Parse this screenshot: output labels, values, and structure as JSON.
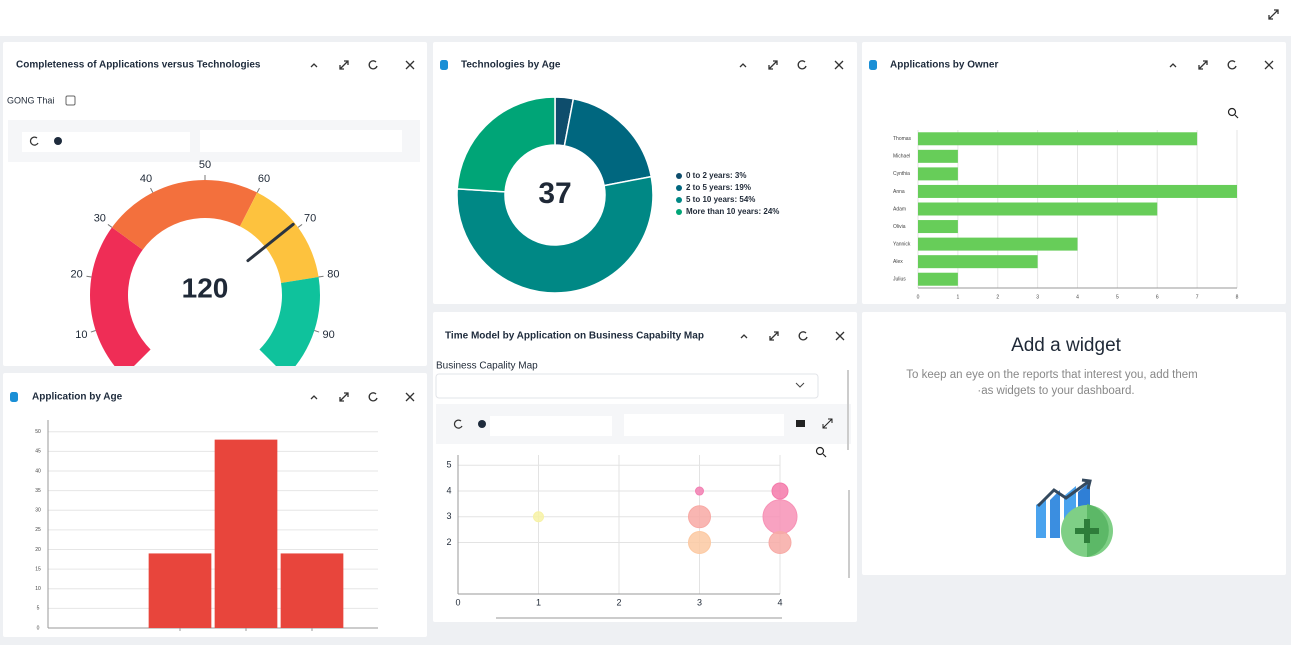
{
  "chart_data": [
    {
      "type": "gauge",
      "title": "Completeness of Applications versus Technologies",
      "filter": "GONG Thai",
      "value": 120,
      "pointer": 69,
      "ylim": [
        0,
        100
      ],
      "yticks": [
        10,
        20,
        30,
        40,
        50,
        60,
        70,
        80,
        90
      ],
      "bands": [
        {
          "from": 0,
          "to": 30,
          "color": "#ef2d56"
        },
        {
          "from": 30,
          "to": 60,
          "color": "#f3703d"
        },
        {
          "from": 60,
          "to": 80,
          "color": "#fdc23e"
        },
        {
          "from": 80,
          "to": 100,
          "color": "#0fc29c"
        }
      ]
    },
    {
      "type": "donut",
      "title": "Technologies by Age",
      "total": 37,
      "categories": [
        "0 to 2 years: 3%",
        "2 to 5 years: 19%",
        "5 to 10 years: 54%",
        "More than 10 years: 24%"
      ],
      "values": [
        3,
        19,
        54,
        24
      ],
      "colors": [
        "#0e4d6c",
        "#00677f",
        "#008885",
        "#00a577"
      ]
    },
    {
      "type": "hbar",
      "title": "Applications by Owner",
      "categories": [
        "Thomas",
        "Michael",
        "Cynthia",
        "Anna",
        "Adam",
        "Olivia",
        "Yannick",
        "Alex",
        "Julius"
      ],
      "values": [
        7,
        1,
        1,
        8,
        6,
        1,
        4,
        3,
        1
      ],
      "color": "#67cd59",
      "xlim": [
        0,
        8
      ],
      "xticks": [
        0,
        1,
        2,
        3,
        4,
        5,
        6,
        7,
        8
      ],
      "grid": true
    },
    {
      "type": "bubble",
      "title": "Time Model by Application on Business Capabilty Map",
      "filter": "Business Capality Map",
      "x": [
        1,
        3,
        3,
        3,
        4,
        4,
        4
      ],
      "values": [
        3,
        4,
        3,
        2,
        4,
        3,
        2
      ],
      "sizes": [
        5,
        4,
        11,
        11,
        8,
        17,
        11
      ],
      "colors": [
        "#f7f2a6",
        "#f27fb2",
        "#f8a9a4",
        "#fcc9a2",
        "#f47aaa",
        "#f792b6",
        "#f7aaa6"
      ],
      "xlim": [
        0,
        4
      ],
      "xticks": [
        0,
        1,
        2,
        3,
        4
      ],
      "ylim": [
        0,
        5.4
      ],
      "yticks": [
        2,
        3,
        4,
        5
      ],
      "grid": true
    },
    {
      "type": "bar",
      "title": "Application by Age",
      "x": [
        2,
        3,
        4
      ],
      "values": [
        19,
        48,
        19
      ],
      "color": "#e8453c",
      "xlim": [
        0,
        5
      ],
      "ylim": [
        0,
        53
      ],
      "yticks": [
        0,
        5,
        10,
        15,
        20,
        25,
        30,
        35,
        40,
        45,
        50
      ],
      "grid": true
    }
  ],
  "add_widget": {
    "title": "Add a widget",
    "text": [
      "To keep an eye on the reports that interest you, add them",
      "·as widgets to your dashboard."
    ]
  }
}
